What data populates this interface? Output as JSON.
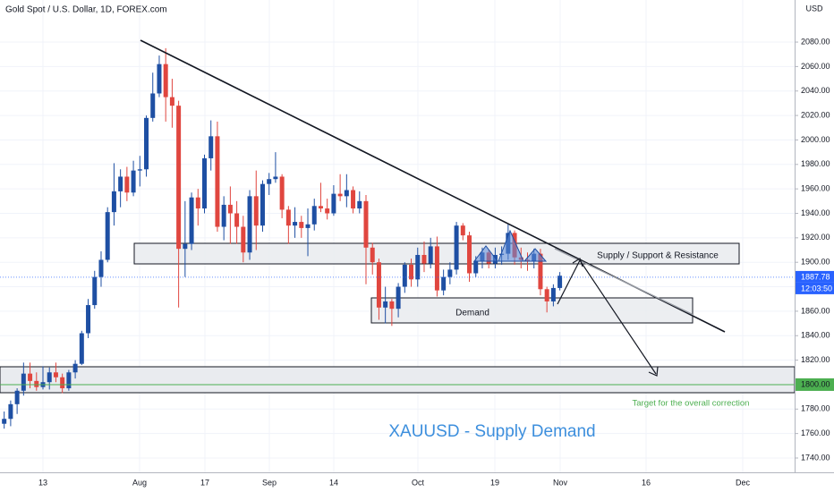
{
  "chart_data": {
    "type": "candlestick",
    "title": "Gold Spot / U.S. Dollar, 1D, FOREX.com",
    "currency": "USD",
    "x": [
      "Jul 3",
      "Jul 6",
      "Jul 7",
      "Jul 8",
      "Jul 9",
      "Jul 10",
      "Jul 13",
      "Jul 14",
      "Jul 15",
      "Jul 16",
      "Jul 17",
      "Jul 20",
      "Jul 21",
      "Jul 22",
      "Jul 23",
      "Jul 24",
      "Jul 27",
      "Jul 28",
      "Jul 29",
      "Jul 30",
      "Jul 31",
      "Aug 3",
      "Aug 4",
      "Aug 5",
      "Aug 6",
      "Aug 7",
      "Aug 10",
      "Aug 11",
      "Aug 12",
      "Aug 13",
      "Aug 14",
      "Aug 17",
      "Aug 18",
      "Aug 19",
      "Aug 20",
      "Aug 21",
      "Aug 24",
      "Aug 25",
      "Aug 26",
      "Aug 27",
      "Aug 28",
      "Aug 31",
      "Sep 1",
      "Sep 2",
      "Sep 3",
      "Sep 4",
      "Sep 7",
      "Sep 8",
      "Sep 9",
      "Sep 10",
      "Sep 11",
      "Sep 14",
      "Sep 15",
      "Sep 16",
      "Sep 17",
      "Sep 18",
      "Sep 21",
      "Sep 22",
      "Sep 23",
      "Sep 24",
      "Sep 25",
      "Sep 28",
      "Sep 29",
      "Sep 30",
      "Oct 1",
      "Oct 2",
      "Oct 5",
      "Oct 6",
      "Oct 7",
      "Oct 8",
      "Oct 9",
      "Oct 12",
      "Oct 13",
      "Oct 14",
      "Oct 15",
      "Oct 16",
      "Oct 19",
      "Oct 20",
      "Oct 21",
      "Oct 22",
      "Oct 23",
      "Oct 26",
      "Oct 27",
      "Oct 28",
      "Oct 29",
      "Oct 30",
      "Nov 2"
    ],
    "open": [
      1768,
      1772,
      1784,
      1795,
      1809,
      1803,
      1798,
      1802,
      1810,
      1806,
      1797,
      1810,
      1817,
      1842,
      1865,
      1888,
      1902,
      1941,
      1958,
      1970,
      1957,
      1975,
      1976,
      2018,
      2038,
      2062,
      2035,
      2028,
      1911,
      1915,
      1953,
      1944,
      1985,
      2003,
      1929,
      1947,
      1940,
      1929,
      1908,
      1954,
      1930,
      1964,
      1968,
      1970,
      1943,
      1930,
      1933,
      1928,
      1931,
      1946,
      1944,
      1940,
      1956,
      1954,
      1959,
      1944,
      1950,
      1912,
      1900,
      1863,
      1868,
      1862,
      1880,
      1898,
      1886,
      1906,
      1899,
      1913,
      1877,
      1888,
      1894,
      1930,
      1922,
      1891,
      1901,
      1908,
      1899,
      1906,
      1907,
      1924,
      1904,
      1902,
      1901,
      1907,
      1878,
      1868,
      1879
    ],
    "high": [
      1778,
      1787,
      1797,
      1818,
      1818,
      1810,
      1815,
      1814,
      1818,
      1809,
      1812,
      1820,
      1844,
      1870,
      1893,
      1909,
      1945,
      1981,
      1976,
      1978,
      1983,
      1987,
      2020,
      2055,
      2069,
      2075,
      2050,
      2032,
      1950,
      1957,
      1960,
      1988,
      2016,
      2015,
      1954,
      1962,
      1950,
      1938,
      1959,
      1975,
      1967,
      1973,
      1990,
      1972,
      1946,
      1945,
      1938,
      1944,
      1952,
      1965,
      1952,
      1963,
      1972,
      1972,
      1962,
      1958,
      1955,
      1916,
      1903,
      1880,
      1870,
      1883,
      1900,
      1903,
      1912,
      1917,
      1920,
      1921,
      1894,
      1900,
      1933,
      1932,
      1925,
      1905,
      1912,
      1910,
      1912,
      1913,
      1931,
      1926,
      1912,
      1908,
      1911,
      1911,
      1880,
      1882,
      1892
    ],
    "low": [
      1764,
      1766,
      1776,
      1791,
      1797,
      1795,
      1796,
      1796,
      1802,
      1793,
      1795,
      1805,
      1816,
      1838,
      1862,
      1880,
      1900,
      1930,
      1945,
      1950,
      1954,
      1962,
      1970,
      2015,
      2035,
      2015,
      2010,
      1863,
      1888,
      1910,
      1930,
      1940,
      1975,
      1925,
      1918,
      1915,
      1915,
      1900,
      1902,
      1910,
      1925,
      1955,
      1965,
      1936,
      1915,
      1920,
      1920,
      1905,
      1926,
      1941,
      1935,
      1938,
      1950,
      1945,
      1940,
      1940,
      1882,
      1890,
      1853,
      1850,
      1848,
      1855,
      1875,
      1880,
      1880,
      1892,
      1895,
      1872,
      1873,
      1882,
      1890,
      1918,
      1884,
      1888,
      1895,
      1895,
      1895,
      1898,
      1902,
      1898,
      1895,
      1893,
      1895,
      1873,
      1859,
      1864,
      1877
    ],
    "close": [
      1772,
      1784,
      1795,
      1809,
      1803,
      1798,
      1802,
      1810,
      1806,
      1797,
      1810,
      1817,
      1842,
      1865,
      1888,
      1902,
      1941,
      1958,
      1970,
      1957,
      1975,
      1976,
      2018,
      2038,
      2062,
      2035,
      2028,
      1911,
      1915,
      1953,
      1944,
      1985,
      2003,
      1929,
      1947,
      1940,
      1929,
      1908,
      1954,
      1930,
      1964,
      1968,
      1970,
      1943,
      1930,
      1933,
      1928,
      1931,
      1946,
      1944,
      1940,
      1956,
      1954,
      1959,
      1944,
      1950,
      1912,
      1900,
      1863,
      1868,
      1862,
      1880,
      1898,
      1886,
      1906,
      1899,
      1913,
      1877,
      1888,
      1894,
      1930,
      1922,
      1891,
      1901,
      1908,
      1899,
      1906,
      1907,
      1924,
      1904,
      1902,
      1901,
      1907,
      1878,
      1868,
      1879,
      1889
    ],
    "up_color": "#1e4fa3",
    "down_color": "#e0463f",
    "ylim": [
      1728.3,
      2114.4
    ],
    "yticks": [
      {
        "value": 1740,
        "label": "1740.00"
      },
      {
        "value": 1760,
        "label": "1760.00"
      },
      {
        "value": 1780,
        "label": "1780.00"
      },
      {
        "value": 1800,
        "label": "1800.00"
      },
      {
        "value": 1820,
        "label": "1820.00"
      },
      {
        "value": 1840,
        "label": "1840.00"
      },
      {
        "value": 1860,
        "label": "1860.00"
      },
      {
        "value": 1880,
        "label": "1880.00"
      },
      {
        "value": 1900,
        "label": "1900.00"
      },
      {
        "value": 1920,
        "label": "1920.00"
      },
      {
        "value": 1940,
        "label": "1940.00"
      },
      {
        "value": 1960,
        "label": "1960.00"
      },
      {
        "value": 1980,
        "label": "1980.00"
      },
      {
        "value": 2000,
        "label": "2000.00"
      },
      {
        "value": 2020,
        "label": "2020.00"
      },
      {
        "value": 2040,
        "label": "2040.00"
      },
      {
        "value": 2060,
        "label": "2060.00"
      },
      {
        "value": 2080,
        "label": "2080.00"
      }
    ],
    "xtick_labels": [
      "13",
      "Aug",
      "17",
      "Sep",
      "14",
      "Oct",
      "19",
      "Nov",
      "16",
      "Dec"
    ],
    "grid": true,
    "last_price": {
      "value": 1887.78,
      "label": "1887.78"
    },
    "countdown": "12:03:50",
    "level": {
      "value": 1800,
      "label": "1800.00"
    },
    "annotations": {
      "supply": "Supply / Support & Resistance",
      "demand": "Demand",
      "headline": "XAUUSD - Supply Demand",
      "target": "Target for the overall correction"
    }
  }
}
